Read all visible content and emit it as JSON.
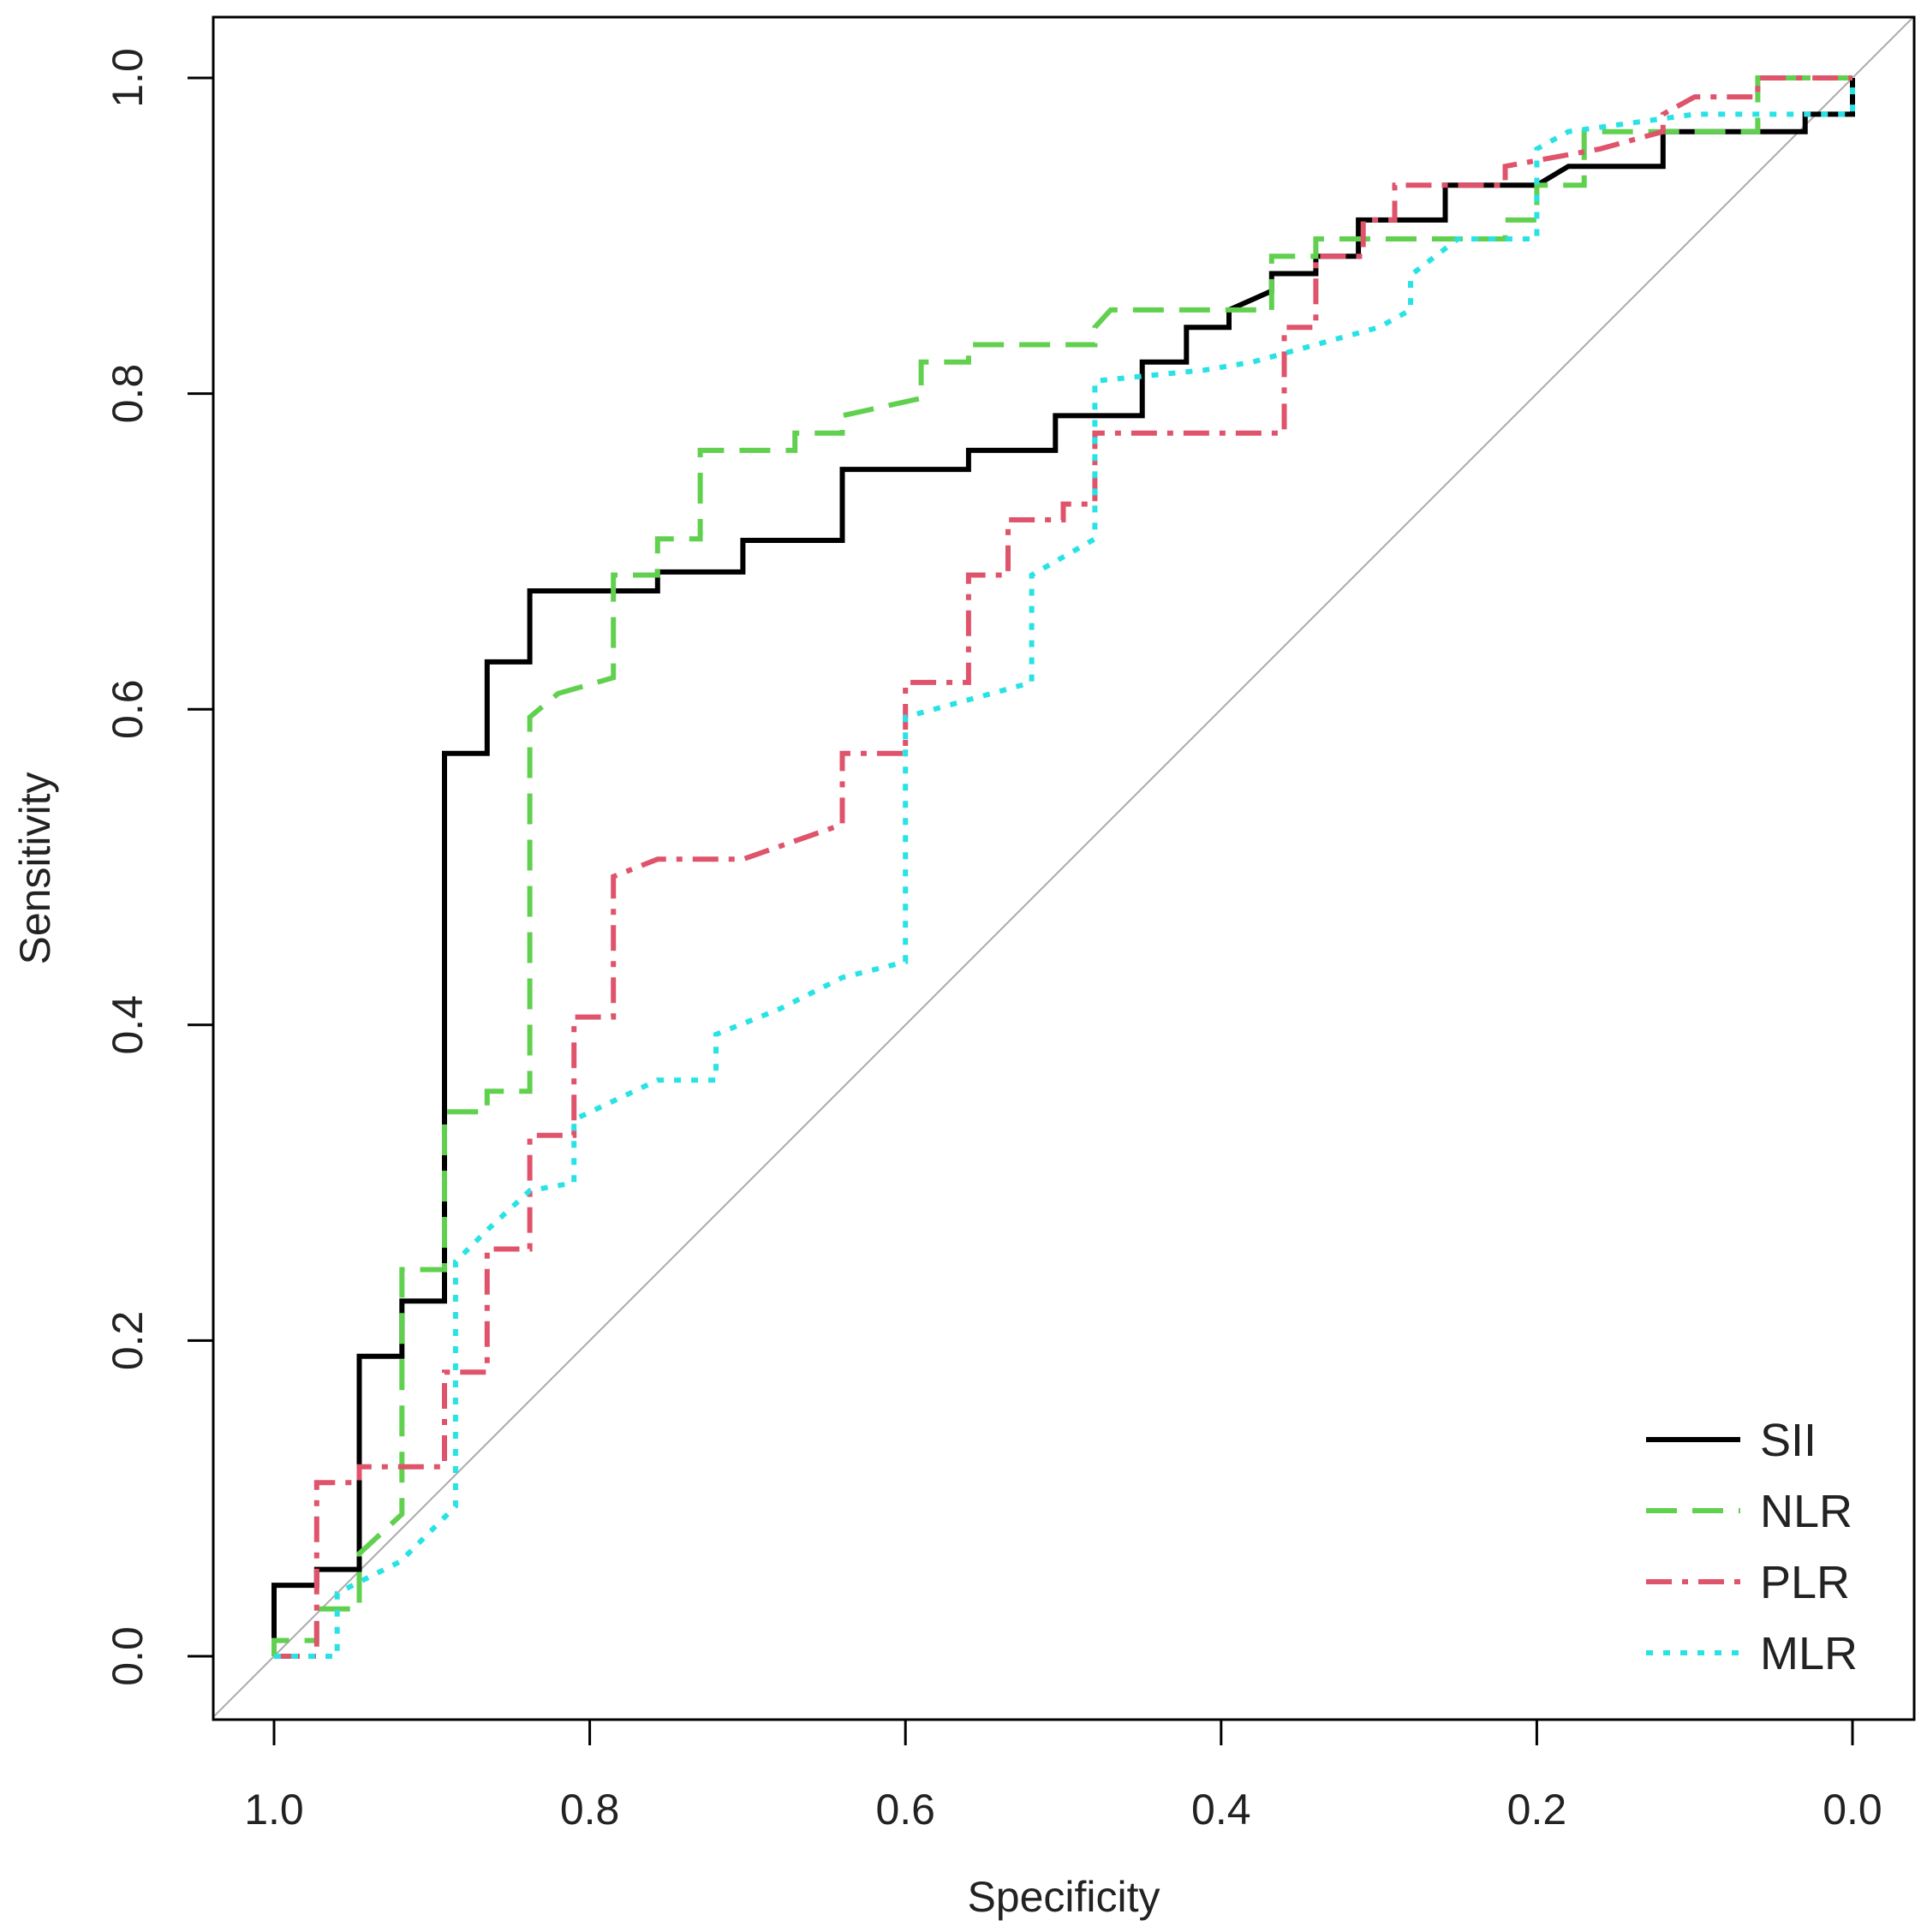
{
  "chart_data": {
    "type": "line",
    "title": "",
    "xlabel": "Specificity",
    "ylabel": "Sensitivity",
    "xlim": [
      1.0,
      0.0
    ],
    "ylim": [
      0.0,
      1.0
    ],
    "x_reversed": true,
    "grid": false,
    "legend_position": "bottom-right",
    "x_ticks": [
      "1.0",
      "0.8",
      "0.6",
      "0.4",
      "0.2",
      "0.0"
    ],
    "y_ticks": [
      "0.0",
      "0.2",
      "0.4",
      "0.6",
      "0.8",
      "1.0"
    ],
    "reference_line": {
      "name": "chance",
      "color": "#aaaaaa",
      "points": [
        [
          1.0,
          0.0
        ],
        [
          0.0,
          1.0
        ]
      ]
    },
    "series": [
      {
        "name": "SII",
        "color": "#000000",
        "dash": "solid",
        "points": [
          [
            1.0,
            0.0
          ],
          [
            1.0,
            0.045
          ],
          [
            0.973,
            0.045
          ],
          [
            0.973,
            0.055
          ],
          [
            0.946,
            0.055
          ],
          [
            0.946,
            0.19
          ],
          [
            0.919,
            0.19
          ],
          [
            0.919,
            0.225
          ],
          [
            0.892,
            0.225
          ],
          [
            0.892,
            0.572
          ],
          [
            0.865,
            0.572
          ],
          [
            0.865,
            0.63
          ],
          [
            0.838,
            0.63
          ],
          [
            0.838,
            0.675
          ],
          [
            0.757,
            0.675
          ],
          [
            0.757,
            0.687
          ],
          [
            0.703,
            0.687
          ],
          [
            0.703,
            0.707
          ],
          [
            0.64,
            0.707
          ],
          [
            0.64,
            0.752
          ],
          [
            0.56,
            0.752
          ],
          [
            0.56,
            0.764
          ],
          [
            0.505,
            0.764
          ],
          [
            0.505,
            0.786
          ],
          [
            0.45,
            0.786
          ],
          [
            0.45,
            0.82
          ],
          [
            0.422,
            0.82
          ],
          [
            0.422,
            0.842
          ],
          [
            0.395,
            0.842
          ],
          [
            0.395,
            0.853
          ],
          [
            0.368,
            0.865
          ],
          [
            0.368,
            0.876
          ],
          [
            0.34,
            0.876
          ],
          [
            0.34,
            0.887
          ],
          [
            0.313,
            0.887
          ],
          [
            0.313,
            0.91
          ],
          [
            0.258,
            0.91
          ],
          [
            0.258,
            0.932
          ],
          [
            0.2,
            0.932
          ],
          [
            0.18,
            0.944
          ],
          [
            0.12,
            0.944
          ],
          [
            0.12,
            0.966
          ],
          [
            0.03,
            0.966
          ],
          [
            0.03,
            0.977
          ],
          [
            0.0,
            0.977
          ],
          [
            0.0,
            1.0
          ]
        ]
      },
      {
        "name": "NLR",
        "color": "#61d04f",
        "dash": "long-dash",
        "points": [
          [
            1.0,
            0.0
          ],
          [
            1.0,
            0.01
          ],
          [
            0.973,
            0.01
          ],
          [
            0.973,
            0.03
          ],
          [
            0.946,
            0.03
          ],
          [
            0.946,
            0.065
          ],
          [
            0.919,
            0.09
          ],
          [
            0.919,
            0.245
          ],
          [
            0.892,
            0.245
          ],
          [
            0.892,
            0.345
          ],
          [
            0.865,
            0.345
          ],
          [
            0.865,
            0.358
          ],
          [
            0.838,
            0.358
          ],
          [
            0.838,
            0.595
          ],
          [
            0.82,
            0.61
          ],
          [
            0.785,
            0.62
          ],
          [
            0.785,
            0.685
          ],
          [
            0.757,
            0.685
          ],
          [
            0.757,
            0.708
          ],
          [
            0.73,
            0.708
          ],
          [
            0.73,
            0.764
          ],
          [
            0.67,
            0.764
          ],
          [
            0.67,
            0.775
          ],
          [
            0.64,
            0.775
          ],
          [
            0.64,
            0.786
          ],
          [
            0.59,
            0.797
          ],
          [
            0.59,
            0.82
          ],
          [
            0.56,
            0.82
          ],
          [
            0.56,
            0.831
          ],
          [
            0.48,
            0.831
          ],
          [
            0.48,
            0.842
          ],
          [
            0.47,
            0.853
          ],
          [
            0.368,
            0.853
          ],
          [
            0.368,
            0.887
          ],
          [
            0.34,
            0.887
          ],
          [
            0.34,
            0.898
          ],
          [
            0.22,
            0.898
          ],
          [
            0.22,
            0.91
          ],
          [
            0.2,
            0.91
          ],
          [
            0.2,
            0.932
          ],
          [
            0.17,
            0.932
          ],
          [
            0.17,
            0.966
          ],
          [
            0.06,
            0.966
          ],
          [
            0.06,
            1.0
          ],
          [
            0.0,
            1.0
          ]
        ]
      },
      {
        "name": "PLR",
        "color": "#df536b",
        "dash": "dash-dot",
        "points": [
          [
            1.0,
            0.0
          ],
          [
            0.973,
            0.0
          ],
          [
            0.973,
            0.11
          ],
          [
            0.946,
            0.11
          ],
          [
            0.946,
            0.12
          ],
          [
            0.892,
            0.12
          ],
          [
            0.892,
            0.18
          ],
          [
            0.865,
            0.18
          ],
          [
            0.865,
            0.258
          ],
          [
            0.838,
            0.258
          ],
          [
            0.838,
            0.33
          ],
          [
            0.81,
            0.33
          ],
          [
            0.81,
            0.405
          ],
          [
            0.785,
            0.405
          ],
          [
            0.785,
            0.494
          ],
          [
            0.757,
            0.505
          ],
          [
            0.703,
            0.505
          ],
          [
            0.64,
            0.527
          ],
          [
            0.64,
            0.572
          ],
          [
            0.6,
            0.572
          ],
          [
            0.6,
            0.617
          ],
          [
            0.56,
            0.617
          ],
          [
            0.56,
            0.685
          ],
          [
            0.535,
            0.685
          ],
          [
            0.535,
            0.72
          ],
          [
            0.5,
            0.72
          ],
          [
            0.5,
            0.73
          ],
          [
            0.48,
            0.73
          ],
          [
            0.48,
            0.775
          ],
          [
            0.36,
            0.775
          ],
          [
            0.36,
            0.842
          ],
          [
            0.34,
            0.842
          ],
          [
            0.34,
            0.887
          ],
          [
            0.31,
            0.887
          ],
          [
            0.31,
            0.91
          ],
          [
            0.29,
            0.91
          ],
          [
            0.29,
            0.932
          ],
          [
            0.22,
            0.932
          ],
          [
            0.22,
            0.944
          ],
          [
            0.16,
            0.955
          ],
          [
            0.12,
            0.966
          ],
          [
            0.12,
            0.977
          ],
          [
            0.1,
            0.988
          ],
          [
            0.06,
            0.988
          ],
          [
            0.06,
            1.0
          ],
          [
            0.0,
            1.0
          ]
        ]
      },
      {
        "name": "MLR",
        "color": "#28e2e5",
        "dash": "dotted",
        "points": [
          [
            1.0,
            0.0
          ],
          [
            0.96,
            0.0
          ],
          [
            0.96,
            0.04
          ],
          [
            0.94,
            0.05
          ],
          [
            0.92,
            0.06
          ],
          [
            0.885,
            0.095
          ],
          [
            0.885,
            0.25
          ],
          [
            0.865,
            0.27
          ],
          [
            0.838,
            0.295
          ],
          [
            0.81,
            0.3
          ],
          [
            0.81,
            0.34
          ],
          [
            0.757,
            0.365
          ],
          [
            0.72,
            0.365
          ],
          [
            0.72,
            0.394
          ],
          [
            0.68,
            0.41
          ],
          [
            0.64,
            0.43
          ],
          [
            0.6,
            0.44
          ],
          [
            0.6,
            0.595
          ],
          [
            0.52,
            0.617
          ],
          [
            0.52,
            0.685
          ],
          [
            0.48,
            0.708
          ],
          [
            0.48,
            0.808
          ],
          [
            0.41,
            0.815
          ],
          [
            0.38,
            0.82
          ],
          [
            0.3,
            0.842
          ],
          [
            0.28,
            0.853
          ],
          [
            0.28,
            0.875
          ],
          [
            0.25,
            0.898
          ],
          [
            0.2,
            0.898
          ],
          [
            0.2,
            0.955
          ],
          [
            0.18,
            0.966
          ],
          [
            0.1,
            0.977
          ],
          [
            0.0,
            0.977
          ],
          [
            0.0,
            1.0
          ]
        ]
      }
    ]
  }
}
